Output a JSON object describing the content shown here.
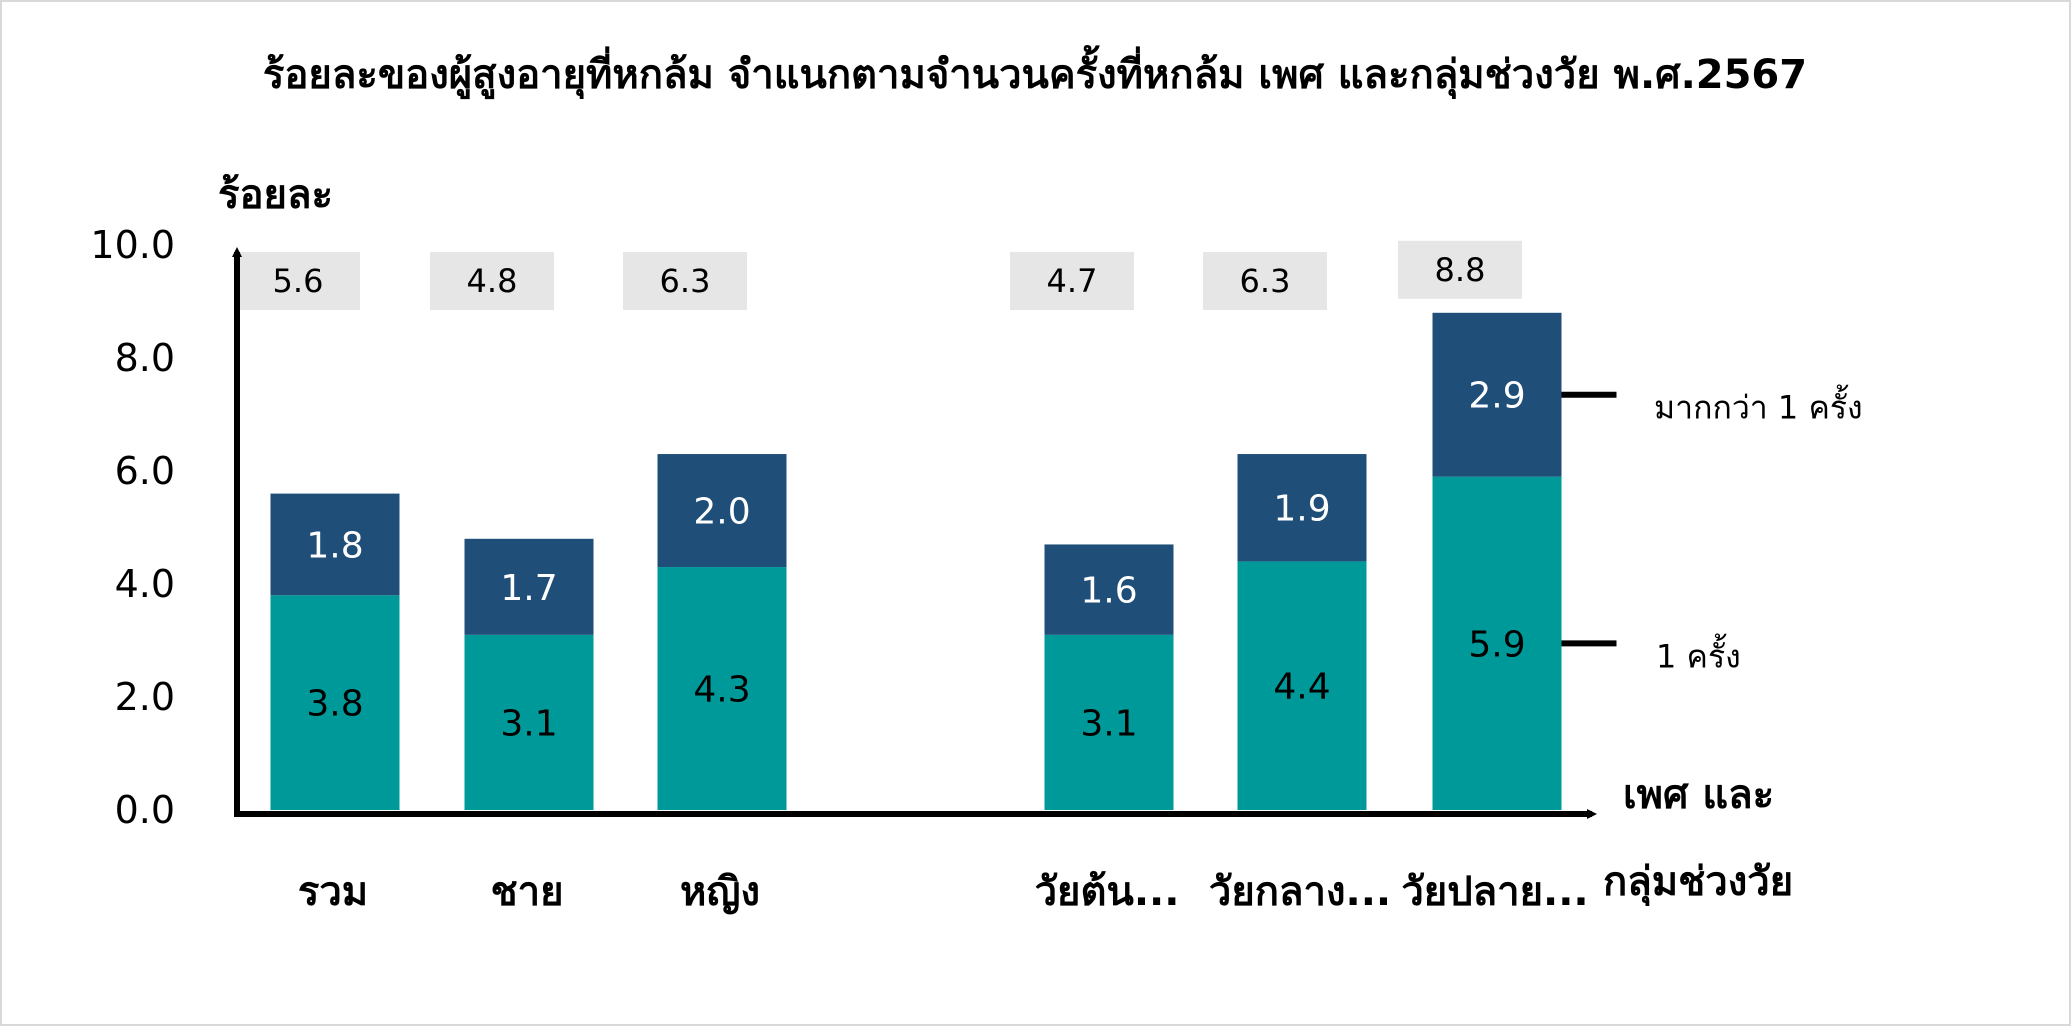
{
  "chart_data": {
    "type": "bar",
    "stacked": true,
    "title": "ร้อยละของผู้สูงอายุที่หกล้ม จำแนกตามจำนวนครั้งที่หกล้ม เพศ และกลุ่มช่วงวัย พ.ศ.2567",
    "ylabel": "ร้อยละ",
    "xlabel_line1": "เพศ และ",
    "xlabel_line2": "กลุ่มช่วงวัย",
    "ylim": [
      0,
      10
    ],
    "yticks": [
      "0.0",
      "2.0",
      "4.0",
      "6.0",
      "8.0",
      "10.0"
    ],
    "categories": [
      "รวม",
      "ชาย",
      "หญิง",
      "วัยต้น...",
      "วัยกลาง...",
      "วัยปลาย..."
    ],
    "group_break_after": 2,
    "series": [
      {
        "name": "1 ครั้ง",
        "values": [
          3.8,
          3.1,
          4.3,
          3.1,
          4.4,
          5.9
        ],
        "color": "#009999",
        "label_color": "#000000"
      },
      {
        "name": "มากกว่า 1 ครั้ง",
        "values": [
          1.8,
          1.7,
          2.0,
          1.6,
          1.9,
          2.9
        ],
        "color": "#1f4e79",
        "label_color": "#ffffff"
      }
    ],
    "totals": [
      "5.6",
      "4.8",
      "6.3",
      "4.7",
      "6.3",
      "8.8"
    ],
    "total_box_color": "#e6e6e6",
    "axis_color": "#000000",
    "grid": false,
    "legend": "right"
  }
}
